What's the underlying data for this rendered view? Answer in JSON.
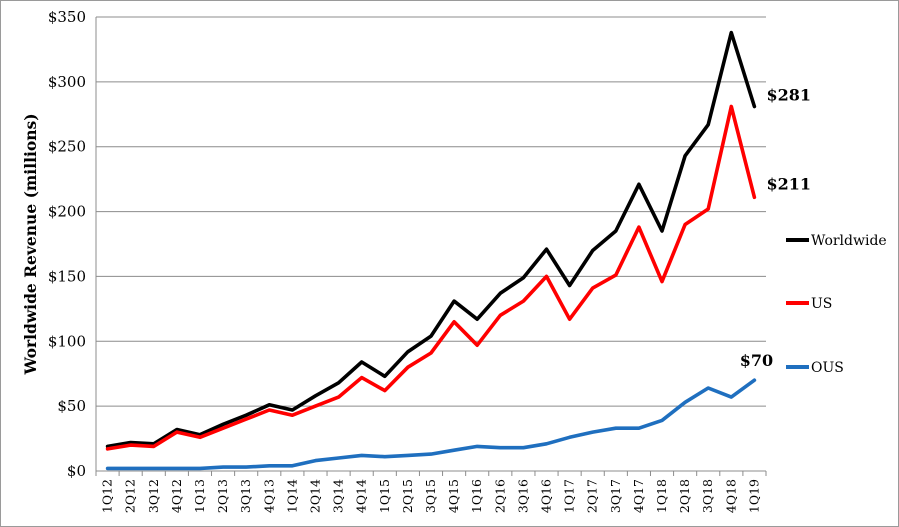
{
  "chart_data": {
    "type": "line",
    "title": "",
    "xlabel": "",
    "ylabel": "Worldwide  Revenue (millions)",
    "ylim": [
      0,
      350
    ],
    "yticks": [
      "$0",
      "$50",
      "$100",
      "$150",
      "$200",
      "$250",
      "$300",
      "$350"
    ],
    "ytick_values": [
      0,
      50,
      100,
      150,
      200,
      250,
      300,
      350
    ],
    "grid": true,
    "legend_placement": "right",
    "categories": [
      "1Q12",
      "2Q12",
      "3Q12",
      "4Q12",
      "1Q13",
      "2Q13",
      "3Q13",
      "4Q13",
      "1Q14",
      "2Q14",
      "3Q14",
      "4Q14",
      "1Q15",
      "2Q15",
      "3Q15",
      "4Q15",
      "1Q16",
      "2Q16",
      "3Q16",
      "4Q16",
      "1Q17",
      "2Q17",
      "3Q17",
      "4Q17",
      "1Q18",
      "2Q18",
      "3Q18",
      "4Q18",
      "1Q19"
    ],
    "series": [
      {
        "name": "Worldwide",
        "color": "#000000",
        "values": [
          19,
          22,
          21,
          32,
          28,
          36,
          43,
          51,
          47,
          58,
          68,
          84,
          73,
          92,
          104,
          131,
          117,
          137,
          149,
          171,
          143,
          170,
          185,
          221,
          185,
          243,
          267,
          338,
          281
        ]
      },
      {
        "name": "US",
        "color": "#ff0000",
        "values": [
          17,
          20,
          19,
          30,
          26,
          33,
          40,
          47,
          43,
          50,
          57,
          72,
          62,
          80,
          91,
          115,
          97,
          120,
          131,
          150,
          117,
          141,
          151,
          188,
          146,
          190,
          202,
          281,
          211
        ]
      },
      {
        "name": "OUS",
        "color": "#1f6fbf",
        "values": [
          2,
          2,
          2,
          2,
          2,
          3,
          3,
          4,
          4,
          8,
          10,
          12,
          11,
          12,
          13,
          16,
          19,
          18,
          18,
          21,
          26,
          30,
          33,
          33,
          39,
          53,
          64,
          57,
          70
        ]
      }
    ],
    "annotations": [
      {
        "text": "$281",
        "series": "Worldwide",
        "value": 281
      },
      {
        "text": "$211",
        "series": "US",
        "value": 211
      },
      {
        "text": "$70",
        "series": "OUS",
        "value": 70
      }
    ]
  }
}
